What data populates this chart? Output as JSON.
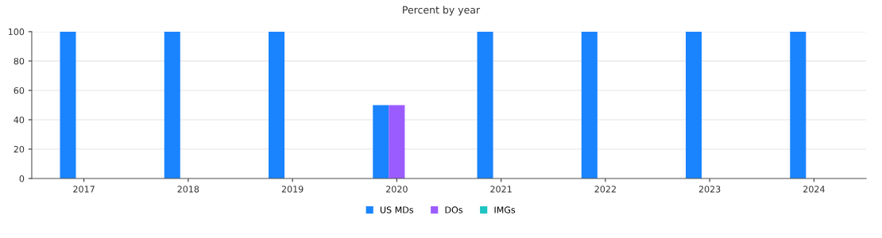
{
  "chart_data": {
    "type": "bar",
    "title": "Percent by year",
    "categories": [
      "2017",
      "2018",
      "2019",
      "2020",
      "2021",
      "2022",
      "2023",
      "2024"
    ],
    "series": [
      {
        "name": "US MDs",
        "color": "#1a84ff",
        "values": [
          100,
          100,
          100,
          50,
          100,
          100,
          100,
          100
        ]
      },
      {
        "name": "DOs",
        "color": "#9b5cff",
        "values": [
          0,
          0,
          0,
          50,
          0,
          0,
          0,
          0
        ]
      },
      {
        "name": "IMGs",
        "color": "#1fc4c4",
        "values": [
          0,
          0,
          0,
          0,
          0,
          0,
          0,
          0
        ]
      }
    ],
    "ylim": [
      0,
      100
    ],
    "yticks": [
      0,
      20,
      40,
      60,
      80,
      100
    ],
    "grid": "y",
    "legend": "bottom"
  }
}
